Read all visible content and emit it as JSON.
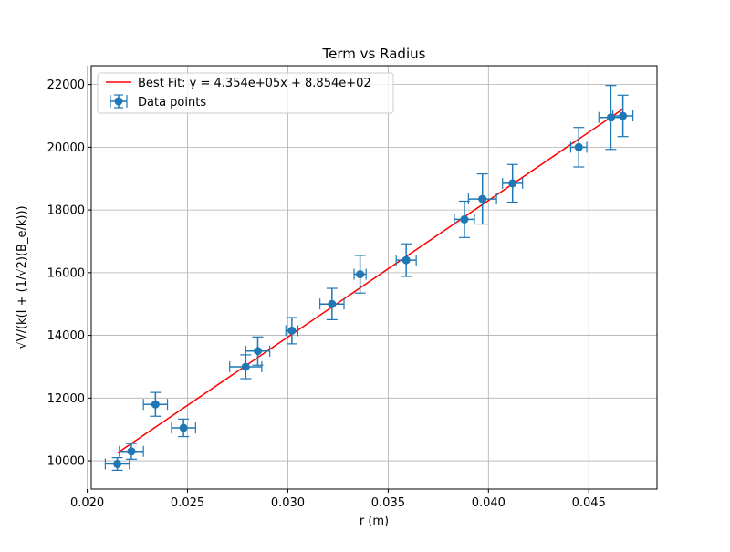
{
  "chart_data": {
    "type": "scatter",
    "title": "Term vs Radius",
    "xlabel": "r (m)",
    "ylabel": "√V/(k(I + (1/√2)(B_e/k)))",
    "xlim": [
      0.0202,
      0.0484
    ],
    "ylim": [
      9100,
      22600
    ],
    "x_ticks": [
      0.02,
      0.025,
      0.03,
      0.035,
      0.04,
      0.045
    ],
    "x_tick_labels": [
      "0.020",
      "0.025",
      "0.030",
      "0.035",
      "0.040",
      "0.045"
    ],
    "y_ticks": [
      10000,
      12000,
      14000,
      16000,
      18000,
      20000,
      22000
    ],
    "y_tick_labels": [
      "10000",
      "12000",
      "14000",
      "16000",
      "18000",
      "20000",
      "22000"
    ],
    "grid": true,
    "legend_position": "top-left",
    "colors": {
      "points": "#1f77b4",
      "fit": "#ff0000"
    },
    "series": [
      {
        "name": "Data points",
        "kind": "errorbar",
        "x": [
          0.0215,
          0.0222,
          0.0234,
          0.0248,
          0.0279,
          0.0285,
          0.0302,
          0.0322,
          0.0336,
          0.0359,
          0.0388,
          0.0397,
          0.0412,
          0.0445,
          0.0461,
          0.0467
        ],
        "y": [
          9900,
          10300,
          11800,
          11050,
          13000,
          13500,
          14150,
          15000,
          15950,
          16400,
          17700,
          18350,
          18850,
          20000,
          20950,
          21000
        ],
        "x_err": [
          0.0006,
          0.0006,
          0.0006,
          0.0006,
          0.0008,
          0.0006,
          0.0003,
          0.0006,
          0.0003,
          0.0005,
          0.0005,
          0.0007,
          0.0005,
          0.0004,
          0.0006,
          0.0005
        ],
        "y_err": [
          200,
          250,
          380,
          280,
          380,
          450,
          420,
          500,
          600,
          520,
          580,
          800,
          600,
          630,
          1020,
          660
        ]
      },
      {
        "name": "Best Fit: y = 4.354e+05x + 8.854e+02",
        "kind": "line",
        "slope": 435400,
        "intercept": 885.4,
        "x_range": [
          0.0215,
          0.0467
        ]
      }
    ]
  }
}
